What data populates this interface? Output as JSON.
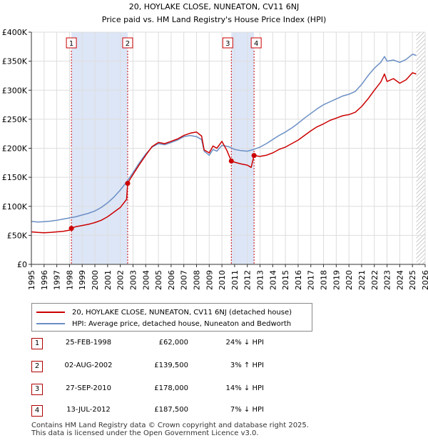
{
  "chart_data": {
    "type": "line",
    "title": "20, HOYLAKE CLOSE, NUNEATON, CV11 6NJ",
    "subtitle": "Price paid vs. HM Land Registry's House Price Index (HPI)",
    "xlabel": "",
    "ylabel": "",
    "xlim": [
      1995,
      2026
    ],
    "ylim": [
      0,
      400000
    ],
    "x_ticks": [
      "1995",
      "1996",
      "1997",
      "1998",
      "1999",
      "2000",
      "2001",
      "2002",
      "2003",
      "2004",
      "2005",
      "2006",
      "2007",
      "2008",
      "2009",
      "2010",
      "2011",
      "2012",
      "2013",
      "2014",
      "2015",
      "2016",
      "2017",
      "2018",
      "2019",
      "2020",
      "2021",
      "2022",
      "2023",
      "2024",
      "2025",
      "2026"
    ],
    "y_ticks": [
      {
        "value": 0,
        "label": "£0"
      },
      {
        "value": 50000,
        "label": "£50K"
      },
      {
        "value": 100000,
        "label": "£100K"
      },
      {
        "value": 150000,
        "label": "£150K"
      },
      {
        "value": 200000,
        "label": "£200K"
      },
      {
        "value": 250000,
        "label": "£250K"
      },
      {
        "value": 300000,
        "label": "£300K"
      },
      {
        "value": 350000,
        "label": "£350K"
      },
      {
        "value": 400000,
        "label": "£400K"
      }
    ],
    "grid": true,
    "shaded_periods": [
      [
        1998.15,
        2002.58
      ],
      [
        2010.74,
        2012.53
      ]
    ],
    "future_hatch_from": 2025.3,
    "series": [
      {
        "name": "20, HOYLAKE CLOSE, NUNEATON, CV11 6NJ (detached house)",
        "color": "#cc0000",
        "x": [
          1995.0,
          1995.5,
          1996.0,
          1996.5,
          1997.0,
          1997.5,
          1998.0,
          1998.15,
          1998.5,
          1999.0,
          1999.5,
          2000.0,
          2000.5,
          2001.0,
          2001.5,
          2002.0,
          2002.5,
          2002.58,
          2002.75,
          2003.0,
          2003.5,
          2004.0,
          2004.5,
          2005.0,
          2005.5,
          2006.0,
          2006.5,
          2007.0,
          2007.5,
          2008.0,
          2008.4,
          2008.6,
          2009.0,
          2009.3,
          2009.6,
          2010.0,
          2010.4,
          2010.74,
          2011.0,
          2011.5,
          2012.0,
          2012.3,
          2012.53,
          2013.0,
          2013.5,
          2014.0,
          2014.5,
          2015.0,
          2015.5,
          2016.0,
          2016.5,
          2017.0,
          2017.5,
          2018.0,
          2018.5,
          2019.0,
          2019.5,
          2020.0,
          2020.5,
          2021.0,
          2021.5,
          2022.0,
          2022.5,
          2022.8,
          2023.0,
          2023.5,
          2024.0,
          2024.5,
          2025.0,
          2025.3
        ],
        "values": [
          56000,
          55000,
          54500,
          55000,
          56000,
          57000,
          59000,
          62000,
          65000,
          67000,
          69000,
          72000,
          76000,
          82000,
          90000,
          98000,
          112000,
          139500,
          146000,
          155000,
          172000,
          188000,
          203000,
          210000,
          208000,
          212000,
          216000,
          222000,
          226000,
          228000,
          221000,
          197000,
          192000,
          204000,
          200000,
          212000,
          196000,
          178000,
          176000,
          173000,
          171000,
          167000,
          187500,
          186000,
          188000,
          192000,
          198000,
          202000,
          208000,
          214000,
          222000,
          230000,
          237000,
          242000,
          248000,
          252000,
          256000,
          258000,
          262000,
          272000,
          285000,
          300000,
          314000,
          328000,
          315000,
          320000,
          312000,
          318000,
          330000,
          328000
        ]
      },
      {
        "name": "HPI: Average price, detached house, Nuneaton and Bedworth",
        "color": "#6b8fc4",
        "x": [
          1995.0,
          1995.5,
          1996.0,
          1996.5,
          1997.0,
          1997.5,
          1998.0,
          1998.5,
          1999.0,
          1999.5,
          2000.0,
          2000.5,
          2001.0,
          2001.5,
          2002.0,
          2002.5,
          2003.0,
          2003.5,
          2004.0,
          2004.5,
          2005.0,
          2005.5,
          2006.0,
          2006.5,
          2007.0,
          2007.5,
          2008.0,
          2008.4,
          2008.6,
          2009.0,
          2009.3,
          2009.6,
          2010.0,
          2010.5,
          2011.0,
          2011.5,
          2012.0,
          2012.5,
          2013.0,
          2013.5,
          2014.0,
          2014.5,
          2015.0,
          2015.5,
          2016.0,
          2016.5,
          2017.0,
          2017.5,
          2018.0,
          2018.5,
          2019.0,
          2019.5,
          2020.0,
          2020.5,
          2021.0,
          2021.5,
          2022.0,
          2022.5,
          2022.8,
          2023.0,
          2023.5,
          2024.0,
          2024.5,
          2025.0,
          2025.3
        ],
        "values": [
          74000,
          73000,
          73500,
          74500,
          76000,
          78000,
          80000,
          82000,
          85000,
          88000,
          92000,
          98000,
          106000,
          116000,
          128000,
          142000,
          158000,
          175000,
          190000,
          202000,
          208000,
          206000,
          210000,
          214000,
          220000,
          222000,
          220000,
          215000,
          195000,
          188000,
          198000,
          195000,
          205000,
          203000,
          198000,
          196000,
          195000,
          198000,
          202000,
          208000,
          215000,
          222000,
          228000,
          235000,
          243000,
          252000,
          260000,
          268000,
          275000,
          280000,
          285000,
          290000,
          293000,
          298000,
          310000,
          325000,
          338000,
          348000,
          358000,
          350000,
          352000,
          348000,
          353000,
          362000,
          360000
        ]
      }
    ],
    "sale_markers": [
      {
        "label": "1",
        "x": 1998.15,
        "value": 62000
      },
      {
        "label": "2",
        "x": 2002.58,
        "value": 139500
      },
      {
        "label": "3",
        "x": 2010.74,
        "value": 178000
      },
      {
        "label": "4",
        "x": 2012.53,
        "value": 187500
      }
    ]
  },
  "legend": {
    "property_label": "20, HOYLAKE CLOSE, NUNEATON, CV11 6NJ (detached house)",
    "hpi_label": "HPI: Average price, detached house, Nuneaton and Bedworth"
  },
  "sales": [
    {
      "num": "1",
      "date": "25-FEB-1998",
      "price": "£62,000",
      "hpi": "24% ↓ HPI"
    },
    {
      "num": "2",
      "date": "02-AUG-2002",
      "price": "£139,500",
      "hpi": "3% ↑ HPI"
    },
    {
      "num": "3",
      "date": "27-SEP-2010",
      "price": "£178,000",
      "hpi": "14% ↓ HPI"
    },
    {
      "num": "4",
      "date": "13-JUL-2012",
      "price": "£187,500",
      "hpi": "7% ↓ HPI"
    }
  ],
  "footer": {
    "line1": "Contains HM Land Registry data © Crown copyright and database right 2025.",
    "line2": "This data is licensed under the Open Government Licence v3.0."
  }
}
